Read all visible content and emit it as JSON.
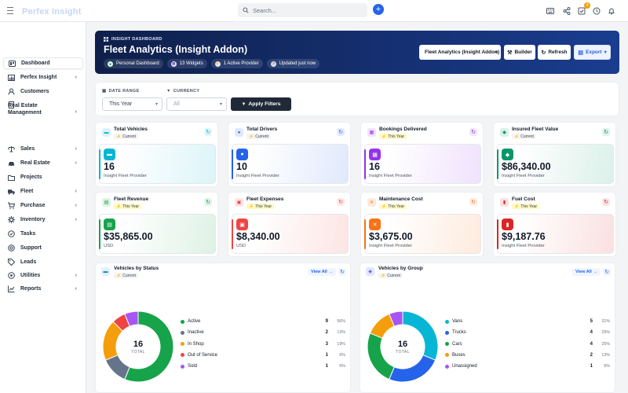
{
  "topbar": {
    "logo_prefix": "Perfex",
    "logo_suffix": "Insight",
    "search_placeholder": "Search...",
    "notification_count": "4"
  },
  "sidebar": {
    "items": [
      {
        "label": "Dashboard",
        "icon": "home-icon"
      },
      {
        "label": "Perfex Insight",
        "icon": "chart-icon",
        "has_submenu": true
      },
      {
        "label": "Customers",
        "icon": "user-icon"
      },
      {
        "label": "Real Estate Management",
        "icon": "building-icon",
        "has_submenu": true
      },
      {
        "label": "Sales",
        "icon": "scale-icon",
        "has_submenu": true
      },
      {
        "label": "Real Estate",
        "icon": "car-icon",
        "has_submenu": true
      },
      {
        "label": "Projects",
        "icon": "folder-icon"
      },
      {
        "label": "Fleet",
        "icon": "truck-icon",
        "has_submenu": true
      },
      {
        "label": "Purchase",
        "icon": "cart-icon",
        "has_submenu": true
      },
      {
        "label": "Inventory",
        "icon": "gear-icon",
        "has_submenu": true
      },
      {
        "label": "Tasks",
        "icon": "check-circle-icon"
      },
      {
        "label": "Support",
        "icon": "lifebuoy-icon"
      },
      {
        "label": "Leads",
        "icon": "tag-icon"
      },
      {
        "label": "Utilities",
        "icon": "cog-icon",
        "has_submenu": true
      },
      {
        "label": "Reports",
        "icon": "area-chart-icon",
        "has_submenu": true
      }
    ]
  },
  "header": {
    "kicker": "INSIGHT DASHBOARD",
    "title": "Fleet Analytics (Insight Addon)",
    "pills": [
      "Personal Dashboard",
      "13 Widgets",
      "1 Active Provider",
      "Updated just now"
    ],
    "dashboard_select": "Fleet Analytics (Insight Addon)",
    "builder_label": "Builder",
    "refresh_label": "Refresh",
    "export_label": "Export"
  },
  "filters": {
    "date_range_label": "DATE RANGE",
    "date_range_value": "This Year",
    "currency_label": "CURRENCY",
    "currency_placeholder": "All",
    "apply_label": "Apply Filters"
  },
  "stats": [
    {
      "title": "Total Vehicles",
      "period": "Current",
      "value": "16",
      "caption": "Insight Fleet Provider",
      "accent": "#06b6d4",
      "icon": "truck-icon"
    },
    {
      "title": "Total Drivers",
      "period": "Current",
      "value": "10",
      "caption": "Insight Fleet Provider",
      "accent": "#2563eb",
      "icon": "user-icon"
    },
    {
      "title": "Bookings Delivered",
      "period": "This Year",
      "value": "16",
      "caption": "Insight Fleet Provider",
      "accent": "#9333ea",
      "icon": "calendar-icon"
    },
    {
      "title": "Insured Fleet Value",
      "period": "Current",
      "value": "$86,340.00",
      "caption": "Insight Fleet Provider",
      "accent": "#059669",
      "icon": "shield-icon"
    },
    {
      "title": "Fleet Revenue",
      "period": "This Year",
      "value": "$35,865.00",
      "caption": "USD",
      "accent": "#16a34a",
      "icon": "document-icon"
    },
    {
      "title": "Fleet Expenses",
      "period": "This Year",
      "value": "$8,340.00",
      "caption": "USD",
      "accent": "#ef4444",
      "icon": "wallet-icon"
    },
    {
      "title": "Maintenance Cost",
      "period": "This Year",
      "value": "$3,675.00",
      "caption": "Insight Fleet Provider",
      "accent": "#f97316",
      "icon": "wrench-icon"
    },
    {
      "title": "Fuel Cost",
      "period": "This Year",
      "value": "$9,187.76",
      "caption": "Insight Fleet Provider",
      "accent": "#dc2626",
      "icon": "fuel-icon"
    }
  ],
  "panels": [
    {
      "title": "Vehicles by Status",
      "period": "Current",
      "view_all": "View All",
      "total": "16",
      "total_label": "TOTAL",
      "items": [
        {
          "label": "Active",
          "count": "9",
          "pct": "56%",
          "value": 9,
          "color": "#16a34a"
        },
        {
          "label": "Inactive",
          "count": "2",
          "pct": "13%",
          "value": 2,
          "color": "#64748b"
        },
        {
          "label": "In Shop",
          "count": "3",
          "pct": "19%",
          "value": 3,
          "color": "#f59e0b"
        },
        {
          "label": "Out of Service",
          "count": "1",
          "pct": "6%",
          "value": 1,
          "color": "#ef4444"
        },
        {
          "label": "Sold",
          "count": "1",
          "pct": "6%",
          "value": 1,
          "color": "#a855f7"
        }
      ]
    },
    {
      "title": "Vehicles by Group",
      "period": "Current",
      "view_all": "View All",
      "total": "16",
      "total_label": "TOTAL",
      "items": [
        {
          "label": "Vans",
          "count": "5",
          "pct": "31%",
          "value": 5,
          "color": "#06b6d4"
        },
        {
          "label": "Trucks",
          "count": "4",
          "pct": "25%",
          "value": 4,
          "color": "#2563eb"
        },
        {
          "label": "Cars",
          "count": "4",
          "pct": "25%",
          "value": 4,
          "color": "#16a34a"
        },
        {
          "label": "Buses",
          "count": "2",
          "pct": "13%",
          "value": 2,
          "color": "#f59e0b"
        },
        {
          "label": "Unassigned",
          "count": "1",
          "pct": "6%",
          "value": 1,
          "color": "#a855f7"
        }
      ]
    }
  ],
  "chart_data": [
    {
      "type": "pie",
      "title": "Vehicles by Status",
      "categories": [
        "Active",
        "Inactive",
        "In Shop",
        "Out of Service",
        "Sold"
      ],
      "values": [
        9,
        2,
        3,
        1,
        1
      ]
    },
    {
      "type": "pie",
      "title": "Vehicles by Group",
      "categories": [
        "Vans",
        "Trucks",
        "Cars",
        "Buses",
        "Unassigned"
      ],
      "values": [
        5,
        4,
        4,
        2,
        1
      ]
    }
  ]
}
